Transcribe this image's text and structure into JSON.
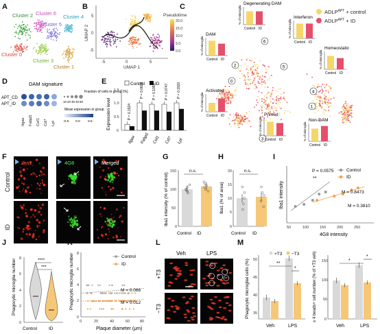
{
  "panels": {
    "A": "A",
    "B": "B",
    "C": "C",
    "D": "D",
    "E": "E",
    "F": "F",
    "G": "G",
    "H": "H",
    "I": "I",
    "J": "J",
    "K": "K",
    "L": "L",
    "M": "M"
  },
  "panelA": {
    "clusters": [
      "Cluster 2",
      "Cluster 6",
      "Cluster 5",
      "Cluster 4",
      "Cluster 0",
      "Cluster 3",
      "Cluster 1"
    ]
  },
  "panelB": {
    "xlabel": "UMAP 1",
    "ylabel": "UMAP 2",
    "legend_title": "Pseudotime",
    "legend_ticks": [
      "20.0",
      "15.0",
      "10.0",
      "5.0",
      "0.0"
    ],
    "x_ticks": [
      "-5",
      "0",
      "5"
    ],
    "y_ticks": [
      "5",
      "0",
      "-5"
    ]
  },
  "panelC": {
    "legend": [
      "ADLP^APT + control",
      "ADLP^APT + ID"
    ],
    "legend_main": "ADLP",
    "legend_sup": "APT",
    "legend_suffix": [
      " + control",
      " + ID"
    ],
    "ylabel": "% of microglia",
    "groups": [
      "Control",
      "ID"
    ],
    "states": [
      {
        "title": "DAM",
        "values": [
          10,
          8
        ]
      },
      {
        "title": "Degenerating DAM",
        "values": [
          6,
          6
        ]
      },
      {
        "title": "Interferon",
        "values": [
          5,
          5
        ]
      },
      {
        "title": "Homeostatic",
        "values": [
          30,
          25
        ]
      },
      {
        "title": "Activated",
        "values": [
          6,
          9
        ]
      },
      {
        "title": "Primed",
        "values": [
          11,
          10
        ]
      },
      {
        "title": "Non-DAM",
        "values": [
          25,
          30
        ]
      }
    ],
    "circle_labels": [
      "6",
      "2",
      "5",
      "0",
      "3",
      "4",
      "1"
    ],
    "colors": {
      "control": "#f5d66b",
      "id": "#e4506a"
    }
  },
  "panelD": {
    "title": "DAM signature",
    "rows": [
      "APT_CD",
      "APT_ID"
    ],
    "genes": [
      "Itgax",
      "Fabp5",
      "Csf1",
      "Cd7",
      "Lpl"
    ],
    "size_title": "Fraction of cells in group (%)",
    "size_ticks": [
      "10",
      "20",
      "30",
      "40",
      "50"
    ],
    "color_title": "Mean expression in group",
    "color_ticks": [
      "-0.5",
      "0.0",
      "0.5"
    ]
  },
  "panelE": {
    "legend": [
      "Control",
      "ID"
    ],
    "ylabel": "Expression level",
    "genes": [
      "Itgax",
      "Fabp5",
      "Csf1",
      "Cd7",
      "Lpl"
    ],
    "p_values": [
      "P = 0.1924",
      "P = 0.0608",
      "P = 0.1055",
      "P = 0.0747",
      "P = 0.1920"
    ],
    "control": [
      0.22,
      1.0,
      0.95,
      0.95,
      1.0
    ],
    "id": [
      0.15,
      0.72,
      0.72,
      0.68,
      0.78
    ],
    "y_ticks": [
      "1.5",
      "1.0",
      "0.5",
      "0"
    ]
  },
  "panelF": {
    "rows": [
      "Control",
      "ID"
    ],
    "cols": [
      "Iba1",
      "4G8",
      "Merged"
    ]
  },
  "panelG": {
    "ylabel": "Iba1 intensity (% of control)",
    "groups": [
      "Control",
      "ID"
    ],
    "sig": "n.s.",
    "values": [
      100,
      108
    ],
    "y_ticks": [
      "150",
      "100",
      "50",
      "0"
    ]
  },
  "panelH": {
    "ylabel": "Iba1 (% of area)",
    "groups": [
      "Control",
      "ID"
    ],
    "sig": "n.s.",
    "values": [
      10,
      10.5
    ],
    "y_ticks": [
      "20",
      "15",
      "10",
      "5",
      "0"
    ]
  },
  "panelI": {
    "xlabel": "4G8 intensity",
    "ylabel": "Iba1 intensity",
    "legend": [
      "Control",
      "ID"
    ],
    "p_label": "P = 0.0575",
    "stars": "**",
    "m_control": "M = 0.8473",
    "m_id": "M = 0.3810",
    "x_ticks": [
      "50",
      "100",
      "150",
      "200",
      "250"
    ]
  },
  "panelJ": {
    "ylabel": "Phagocytic microglia number",
    "groups": [
      "Control",
      "ID"
    ],
    "sig": [
      "****",
      "***"
    ],
    "y_ticks": [
      "8",
      "6",
      "4",
      "2",
      "0"
    ]
  },
  "panelK": {
    "xlabel": "Plaque diameter (μm)",
    "ylabel": "Phagocytic microglia number",
    "legend": [
      "Control",
      "ID"
    ],
    "m_control": "M = 0.066",
    "m_id": "M = 0.012",
    "x_ticks": [
      "0",
      "20",
      "40",
      "60",
      "80"
    ],
    "y_ticks": [
      "8",
      "6",
      "4",
      "2",
      "0"
    ]
  },
  "panelL": {
    "cols": [
      "Veh",
      "LPS"
    ],
    "rows": [
      "+T3",
      "−T3"
    ]
  },
  "panelM": {
    "legend": [
      "+T3",
      "−T3"
    ],
    "left_ylabel": "Phagocytic microglial cells (%)",
    "right_ylabel": "≥ 4 beads+ cell number (% of +T3 veh)",
    "groups": [
      "Veh",
      "LPS"
    ],
    "left_values": {
      "plus": [
        38,
        49
      ],
      "minus": [
        37,
        42
      ]
    },
    "right_values": {
      "plus": [
        100,
        140
      ],
      "minus": [
        88,
        95
      ]
    },
    "left_ticks": [
      "50",
      "45",
      "40",
      "35"
    ],
    "right_ticks": [
      "150",
      "100",
      "50",
      "0"
    ],
    "left_sig": [
      "**",
      "*"
    ],
    "right_sig": [
      "*",
      "*"
    ]
  }
}
